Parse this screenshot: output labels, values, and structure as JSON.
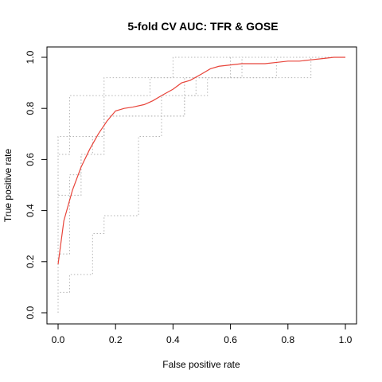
{
  "chart_data": {
    "type": "line",
    "title": "5-fold CV AUC: TFR & GOSE",
    "xlabel": "False positive rate",
    "ylabel": "True positive rate",
    "xlim": [
      0,
      1
    ],
    "ylim": [
      0,
      1
    ],
    "x_ticks": [
      "0.0",
      "0.2",
      "0.4",
      "0.6",
      "0.8",
      "1.0"
    ],
    "y_ticks": [
      "0.0",
      "0.2",
      "0.4",
      "0.6",
      "0.8",
      "1.0"
    ],
    "grid": false,
    "legend": "none",
    "colors": {
      "mean": "#e8443a",
      "folds": "#b5b5b5"
    },
    "series": [
      {
        "style": "mean",
        "x": [
          0,
          0.02,
          0.05,
          0.08,
          0.11,
          0.14,
          0.17,
          0.2,
          0.23,
          0.26,
          0.3,
          0.33,
          0.36,
          0.4,
          0.43,
          0.46,
          0.5,
          0.53,
          0.56,
          0.6,
          0.64,
          0.68,
          0.72,
          0.76,
          0.8,
          0.84,
          0.88,
          0.92,
          0.96,
          1
        ],
        "y": [
          0.19,
          0.36,
          0.48,
          0.57,
          0.64,
          0.7,
          0.75,
          0.79,
          0.8,
          0.805,
          0.815,
          0.83,
          0.85,
          0.875,
          0.9,
          0.91,
          0.935,
          0.955,
          0.965,
          0.97,
          0.975,
          0.975,
          0.975,
          0.98,
          0.985,
          0.985,
          0.99,
          0.995,
          1,
          1
        ]
      },
      {
        "style": "fold",
        "x": [
          0,
          0,
          0.04,
          0.04,
          0.08,
          0.08,
          0.12,
          0.12,
          0.16,
          0.16,
          0.22,
          0.22,
          0.28,
          0.28,
          0.36,
          0.36,
          0.44,
          0.44,
          0.56,
          0.56,
          0.72,
          0.72,
          0.88,
          0.88,
          1
        ],
        "y": [
          0,
          0.23,
          0.23,
          0.46,
          0.46,
          0.62,
          0.62,
          0.69,
          0.69,
          0.77,
          0.77,
          0.77,
          0.77,
          0.77,
          0.77,
          0.85,
          0.85,
          0.92,
          0.92,
          0.92,
          0.92,
          0.92,
          0.92,
          1,
          1
        ]
      },
      {
        "style": "fold",
        "x": [
          0,
          0,
          0.04,
          0.04,
          0.12,
          0.12,
          0.16,
          0.16,
          0.28,
          0.28,
          0.36,
          0.36,
          0.44,
          0.44,
          0.48,
          0.48,
          0.6,
          0.6,
          1
        ],
        "y": [
          0,
          0.08,
          0.08,
          0.15,
          0.15,
          0.31,
          0.31,
          0.38,
          0.38,
          0.69,
          0.69,
          0.77,
          0.77,
          0.85,
          0.85,
          0.92,
          0.92,
          1,
          1
        ]
      },
      {
        "style": "fold",
        "x": [
          0,
          0,
          0.04,
          0.04,
          0.08,
          0.08,
          0.16,
          0.16,
          0.32,
          0.32,
          0.44,
          0.44,
          0.52,
          0.52,
          0.64,
          0.64,
          0.76,
          0.76,
          0.92,
          0.92,
          1
        ],
        "y": [
          0,
          0.46,
          0.46,
          0.54,
          0.54,
          0.62,
          0.62,
          0.77,
          0.77,
          0.77,
          0.77,
          0.85,
          0.85,
          0.92,
          0.92,
          1,
          1,
          1,
          1,
          1,
          1
        ]
      },
      {
        "style": "fold",
        "x": [
          0,
          0,
          0.04,
          0.04,
          0.08,
          0.08,
          0.12,
          0.12,
          0.2,
          0.2,
          0.32,
          0.32,
          0.44,
          0.44,
          0.56,
          0.56,
          0.76,
          0.76,
          1
        ],
        "y": [
          0,
          0.62,
          0.62,
          0.85,
          0.85,
          0.85,
          0.85,
          0.85,
          0.85,
          0.85,
          0.85,
          0.92,
          0.92,
          0.92,
          0.92,
          0.92,
          0.92,
          1,
          1
        ]
      },
      {
        "style": "fold",
        "x": [
          0,
          0,
          0.04,
          0.04,
          0.16,
          0.16,
          0.24,
          0.24,
          0.4,
          0.4,
          0.44,
          0.44,
          0.52,
          0.52,
          1
        ],
        "y": [
          0,
          0.69,
          0.69,
          0.69,
          0.69,
          0.92,
          0.92,
          0.92,
          0.92,
          1,
          1,
          1,
          1,
          1,
          1
        ]
      }
    ]
  }
}
